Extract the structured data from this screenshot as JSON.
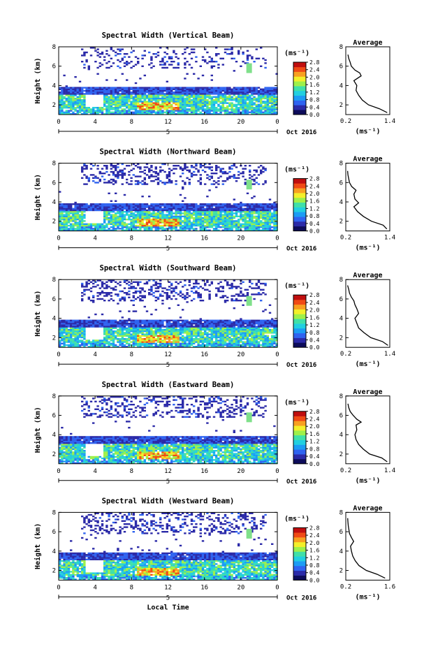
{
  "figure": {
    "date_label": "Oct 2016",
    "xlabel": "Local Time",
    "day_label": "5",
    "colorbar_unit": "(ms⁻¹)",
    "profile_title": "Average",
    "profile_xlabel": "(ms⁻¹)",
    "height_label": "Height (km)"
  },
  "chart_data": [
    {
      "type": "heatmap",
      "title": "Spectral Width (Vertical Beam)",
      "xlabel": "",
      "ylabel": "Height (km)",
      "x_ticks": [
        "0",
        "4",
        "8",
        "12",
        "16",
        "20",
        "0"
      ],
      "xlim": [
        0,
        24
      ],
      "y_ticks": [
        "2",
        "4",
        "6",
        "8"
      ],
      "ylim": [
        1,
        8
      ],
      "colorbar": {
        "label": "(ms⁻¹)",
        "ticks": [
          "0.0",
          "0.4",
          "0.8",
          "1.2",
          "1.6",
          "2.0",
          "2.4",
          "2.8"
        ],
        "range": [
          0,
          2.8
        ]
      },
      "profile": {
        "title": "Average",
        "xlabel": "(ms⁻¹)",
        "x_ticks": [
          "0.2",
          "1.4"
        ],
        "xlim": [
          0.2,
          1.4
        ],
        "ylim": [
          1,
          8
        ],
        "y": [
          1.2,
          1.6,
          2.0,
          2.5,
          3.0,
          3.5,
          4.0,
          4.5,
          5.0,
          5.3,
          5.6,
          6.0,
          6.4,
          6.8,
          7.2
        ],
        "x": [
          1.33,
          1.12,
          0.82,
          0.65,
          0.55,
          0.48,
          0.5,
          0.42,
          0.62,
          0.58,
          0.45,
          0.35,
          0.32,
          0.28,
          0.26
        ]
      }
    },
    {
      "type": "heatmap",
      "title": "Spectral Width (Northward Beam)",
      "xlabel": "",
      "ylabel": "Height (km)",
      "x_ticks": [
        "0",
        "4",
        "8",
        "12",
        "16",
        "20",
        "0"
      ],
      "xlim": [
        0,
        24
      ],
      "y_ticks": [
        "2",
        "4",
        "6",
        "8"
      ],
      "ylim": [
        1,
        8
      ],
      "colorbar": {
        "label": "(ms⁻¹)",
        "ticks": [
          "0.0",
          "0.4",
          "0.8",
          "1.2",
          "1.6",
          "2.0",
          "2.4",
          "2.8"
        ],
        "range": [
          0,
          2.8
        ]
      },
      "profile": {
        "title": "Average",
        "xlabel": "(ms⁻¹)",
        "x_ticks": [
          "0.2",
          "1.4"
        ],
        "xlim": [
          0.2,
          1.4
        ],
        "ylim": [
          1,
          8
        ],
        "y": [
          1.2,
          1.6,
          2.0,
          2.5,
          3.0,
          3.5,
          3.9,
          4.3,
          4.8,
          5.2,
          5.6,
          6.0,
          6.4,
          6.8,
          7.2
        ],
        "x": [
          1.32,
          1.22,
          0.9,
          0.68,
          0.52,
          0.42,
          0.55,
          0.45,
          0.42,
          0.48,
          0.36,
          0.3,
          0.28,
          0.26,
          0.25
        ]
      }
    },
    {
      "type": "heatmap",
      "title": "Spectral Width (Southward Beam)",
      "xlabel": "",
      "ylabel": "Height (km)",
      "x_ticks": [
        "0",
        "4",
        "8",
        "12",
        "16",
        "20",
        "0"
      ],
      "xlim": [
        0,
        24
      ],
      "y_ticks": [
        "2",
        "4",
        "6",
        "8"
      ],
      "ylim": [
        1,
        8
      ],
      "colorbar": {
        "label": "(ms⁻¹)",
        "ticks": [
          "0.0",
          "0.4",
          "0.8",
          "1.2",
          "1.6",
          "2.0",
          "2.4",
          "2.8"
        ],
        "range": [
          0,
          2.8
        ]
      },
      "profile": {
        "title": "Average",
        "xlabel": "(ms⁻¹)",
        "x_ticks": [
          "0.2",
          "1.4"
        ],
        "xlim": [
          0.2,
          1.4
        ],
        "ylim": [
          1,
          8
        ],
        "y": [
          1.2,
          1.6,
          2.0,
          2.5,
          3.0,
          3.5,
          4.0,
          4.5,
          5.0,
          5.4,
          5.8,
          6.2,
          6.6,
          7.0,
          7.4
        ],
        "x": [
          1.35,
          1.2,
          0.88,
          0.7,
          0.55,
          0.5,
          0.45,
          0.55,
          0.5,
          0.45,
          0.42,
          0.35,
          0.3,
          0.28,
          0.25
        ]
      }
    },
    {
      "type": "heatmap",
      "title": "Spectral Width (Eastward Beam)",
      "xlabel": "",
      "ylabel": "Height (km)",
      "x_ticks": [
        "0",
        "4",
        "8",
        "12",
        "16",
        "20",
        "0"
      ],
      "xlim": [
        0,
        24
      ],
      "y_ticks": [
        "2",
        "4",
        "6",
        "8"
      ],
      "ylim": [
        1,
        8
      ],
      "colorbar": {
        "label": "(ms⁻¹)",
        "ticks": [
          "0.0",
          "0.4",
          "0.8",
          "1.2",
          "1.6",
          "2.0",
          "2.4",
          "2.8"
        ],
        "range": [
          0,
          2.8
        ]
      },
      "profile": {
        "title": "Average",
        "xlabel": "(ms⁻¹)",
        "x_ticks": [
          "0.2",
          "1.4"
        ],
        "xlim": [
          0.2,
          1.4
        ],
        "ylim": [
          1,
          8
        ],
        "y": [
          1.2,
          1.6,
          2.0,
          2.5,
          3.0,
          3.5,
          4.0,
          4.5,
          5.0,
          5.3,
          5.6,
          6.0,
          6.4,
          6.8,
          7.2
        ],
        "x": [
          1.33,
          1.18,
          0.85,
          0.68,
          0.55,
          0.48,
          0.45,
          0.5,
          0.48,
          0.62,
          0.5,
          0.4,
          0.32,
          0.28,
          0.26
        ]
      }
    },
    {
      "type": "heatmap",
      "title": "Spectral Width (Westward Beam)",
      "xlabel": "Local Time",
      "ylabel": "Height (km)",
      "x_ticks": [
        "0",
        "4",
        "8",
        "12",
        "16",
        "20",
        "0"
      ],
      "xlim": [
        0,
        24
      ],
      "y_ticks": [
        "2",
        "4",
        "6",
        "8"
      ],
      "ylim": [
        1,
        8
      ],
      "colorbar": {
        "label": "(ms⁻¹)",
        "ticks": [
          "0.0",
          "0.4",
          "0.8",
          "1.2",
          "1.6",
          "2.0",
          "2.4",
          "2.8"
        ],
        "range": [
          0,
          2.8
        ]
      },
      "profile": {
        "title": "Average",
        "xlabel": "(ms⁻¹)",
        "x_ticks": [
          "0.2",
          "1.6"
        ],
        "xlim": [
          0.2,
          1.6
        ],
        "ylim": [
          1,
          8
        ],
        "y": [
          1.2,
          1.6,
          2.0,
          2.5,
          3.0,
          3.5,
          4.0,
          4.5,
          5.0,
          5.4,
          5.8,
          6.2,
          6.6,
          7.0,
          7.4
        ],
        "x": [
          1.45,
          1.2,
          0.85,
          0.62,
          0.5,
          0.42,
          0.38,
          0.35,
          0.45,
          0.38,
          0.32,
          0.3,
          0.28,
          0.27,
          0.26
        ]
      }
    }
  ]
}
